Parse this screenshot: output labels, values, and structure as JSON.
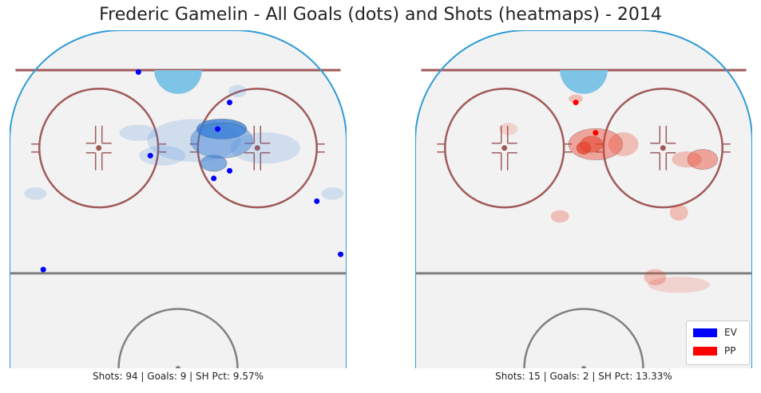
{
  "title": "Frederic Gamelin - All Goals (dots) and Shots (heatmaps) - 2014",
  "colors": {
    "ev": "#0000ff",
    "pp": "#ff0000",
    "ev_heat": "#3a7fd6",
    "pp_heat": "#e8452e",
    "boards": "#2e9bd6",
    "red_line": "#a05a5a",
    "grey_line": "#808080",
    "crease": "#7ec4e6",
    "ice": "#f2f2f2"
  },
  "legend": [
    {
      "label": "EV",
      "color": "#0000ff"
    },
    {
      "label": "PP",
      "color": "#ff0000"
    }
  ],
  "chart_data": [
    {
      "type": "scatter",
      "name": "EV",
      "caption": "Shots: 94 | Goals: 9 | SH Pct: 9.57%",
      "stats": {
        "shots": 94,
        "goals": 9,
        "sh_pct": "9.57%"
      },
      "goals": [
        {
          "x": -10,
          "y": 78
        },
        {
          "x": 13,
          "y": 70
        },
        {
          "x": 10,
          "y": 63
        },
        {
          "x": -7,
          "y": 56
        },
        {
          "x": 13,
          "y": 52
        },
        {
          "x": 9,
          "y": 50
        },
        {
          "x": 35,
          "y": 44
        },
        {
          "x": -34,
          "y": 26
        },
        {
          "x": 41,
          "y": 30
        }
      ],
      "shot_hotspots": [
        {
          "x": 11,
          "y": 63,
          "w": 11,
          "h": 4,
          "level": 5
        },
        {
          "x": 9,
          "y": 54,
          "w": 5,
          "h": 3,
          "level": 4
        },
        {
          "x": 11,
          "y": 60,
          "w": 14,
          "h": 8,
          "level": 3
        },
        {
          "x": 4,
          "y": 60,
          "w": 22,
          "h": 10,
          "level": 1
        },
        {
          "x": -10,
          "y": 62,
          "w": 8,
          "h": 3,
          "level": 1
        },
        {
          "x": 22,
          "y": 58,
          "w": 16,
          "h": 7,
          "level": 1
        },
        {
          "x": -4,
          "y": 56,
          "w": 10,
          "h": 4,
          "level": 1
        },
        {
          "x": -36,
          "y": 46,
          "w": 4,
          "h": 2,
          "level": 1
        },
        {
          "x": 39,
          "y": 46,
          "w": 4,
          "h": 2,
          "level": 1
        },
        {
          "x": 15,
          "y": 73,
          "w": 3,
          "h": 2,
          "level": 1
        }
      ]
    },
    {
      "type": "scatter",
      "name": "PP",
      "caption": "Shots: 15 | Goals: 2 | SH Pct: 13.33%",
      "stats": {
        "shots": 15,
        "goals": 2,
        "sh_pct": "13.33%"
      },
      "goals": [
        {
          "x": -2,
          "y": 70
        },
        {
          "x": 3,
          "y": 62
        }
      ],
      "shot_hotspots": [
        {
          "x": 0,
          "y": 58,
          "w": 2,
          "h": 2,
          "level": 5
        },
        {
          "x": 2,
          "y": 59,
          "w": 4,
          "h": 3,
          "level": 4
        },
        {
          "x": 3,
          "y": 59,
          "w": 12,
          "h": 7,
          "level": 3
        },
        {
          "x": 10,
          "y": 59,
          "w": 6,
          "h": 5,
          "level": 2
        },
        {
          "x": 30,
          "y": 55,
          "w": 6,
          "h": 4,
          "level": 3
        },
        {
          "x": 26,
          "y": 55,
          "w": 6,
          "h": 3,
          "level": 2
        },
        {
          "x": 24,
          "y": 41,
          "w": 3,
          "h": 3,
          "level": 2
        },
        {
          "x": 24,
          "y": 22,
          "w": 14,
          "h": 3,
          "level": 1
        },
        {
          "x": 18,
          "y": 24,
          "w": 4,
          "h": 3,
          "level": 2
        },
        {
          "x": -6,
          "y": 40,
          "w": 3,
          "h": 2,
          "level": 2
        },
        {
          "x": -19,
          "y": 63,
          "w": 3,
          "h": 2,
          "level": 1
        },
        {
          "x": -2,
          "y": 71,
          "w": 2,
          "h": 1,
          "level": 2
        }
      ],
      "xlim": [
        -42.5,
        42.5
      ],
      "ylim": [
        0,
        89
      ]
    }
  ]
}
